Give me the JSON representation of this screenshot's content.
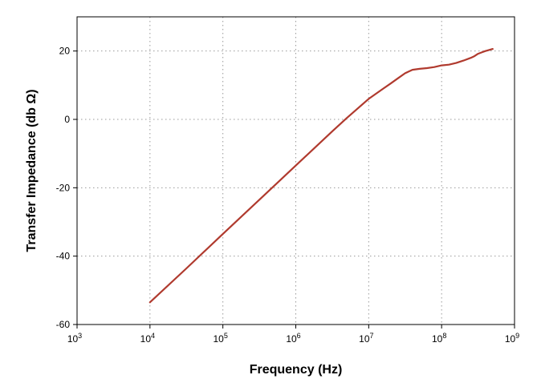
{
  "chart_data": {
    "type": "line",
    "title": "",
    "xlabel": "Frequency (Hz)",
    "ylabel": "Transfer Impedance (db Ω)",
    "x_scale": "log",
    "xlim": [
      1000,
      1000000000
    ],
    "ylim": [
      -60,
      30
    ],
    "x_ticks": [
      {
        "value": 1000,
        "base": "10",
        "exp": "3"
      },
      {
        "value": 10000,
        "base": "10",
        "exp": "4"
      },
      {
        "value": 100000,
        "base": "10",
        "exp": "5"
      },
      {
        "value": 1000000,
        "base": "10",
        "exp": "6"
      },
      {
        "value": 10000000,
        "base": "10",
        "exp": "7"
      },
      {
        "value": 100000000,
        "base": "10",
        "exp": "8"
      },
      {
        "value": 1000000000,
        "base": "10",
        "exp": "9"
      }
    ],
    "y_ticks": [
      {
        "value": -60,
        "label": "-60"
      },
      {
        "value": -40,
        "label": "-40"
      },
      {
        "value": -20,
        "label": "-20"
      },
      {
        "value": 0,
        "label": "0"
      },
      {
        "value": 20,
        "label": "20"
      }
    ],
    "grid": true,
    "legend": "none",
    "line_color": "#b03a2e",
    "series": [
      {
        "x": [
          10000,
          31600,
          100000,
          316000,
          1000000,
          3160000,
          5000000,
          10000000,
          15800000,
          20000000,
          25100000,
          31600000,
          39800000,
          50000000,
          63100000,
          79400000,
          100000000,
          125900000,
          158500000,
          199500000,
          251200000,
          281800000,
          316200000,
          354800000,
          398100000,
          446700000,
          501200000
        ],
        "y": [
          -53.5,
          -43.6,
          -33.5,
          -23.5,
          -13.5,
          -3.5,
          0.4,
          6.0,
          9.0,
          10.5,
          12.0,
          13.5,
          14.5,
          14.8,
          15.0,
          15.3,
          15.8,
          16.0,
          16.5,
          17.2,
          18.0,
          18.5,
          19.2,
          19.6,
          20.0,
          20.3,
          20.6
        ]
      }
    ]
  }
}
